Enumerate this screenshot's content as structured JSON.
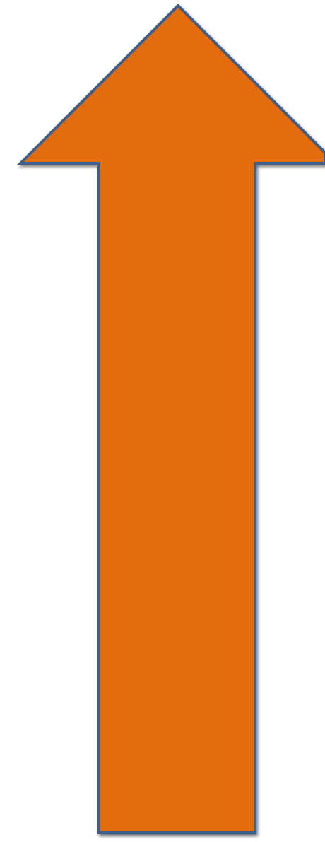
{
  "shape": {
    "type": "up-arrow",
    "icon": "arrow-up-icon",
    "fill_color": "#E36C0A",
    "stroke_color": "#3E5F8A",
    "shadow_color": "#7F7F7F",
    "background_color": "#FFFFFF"
  }
}
